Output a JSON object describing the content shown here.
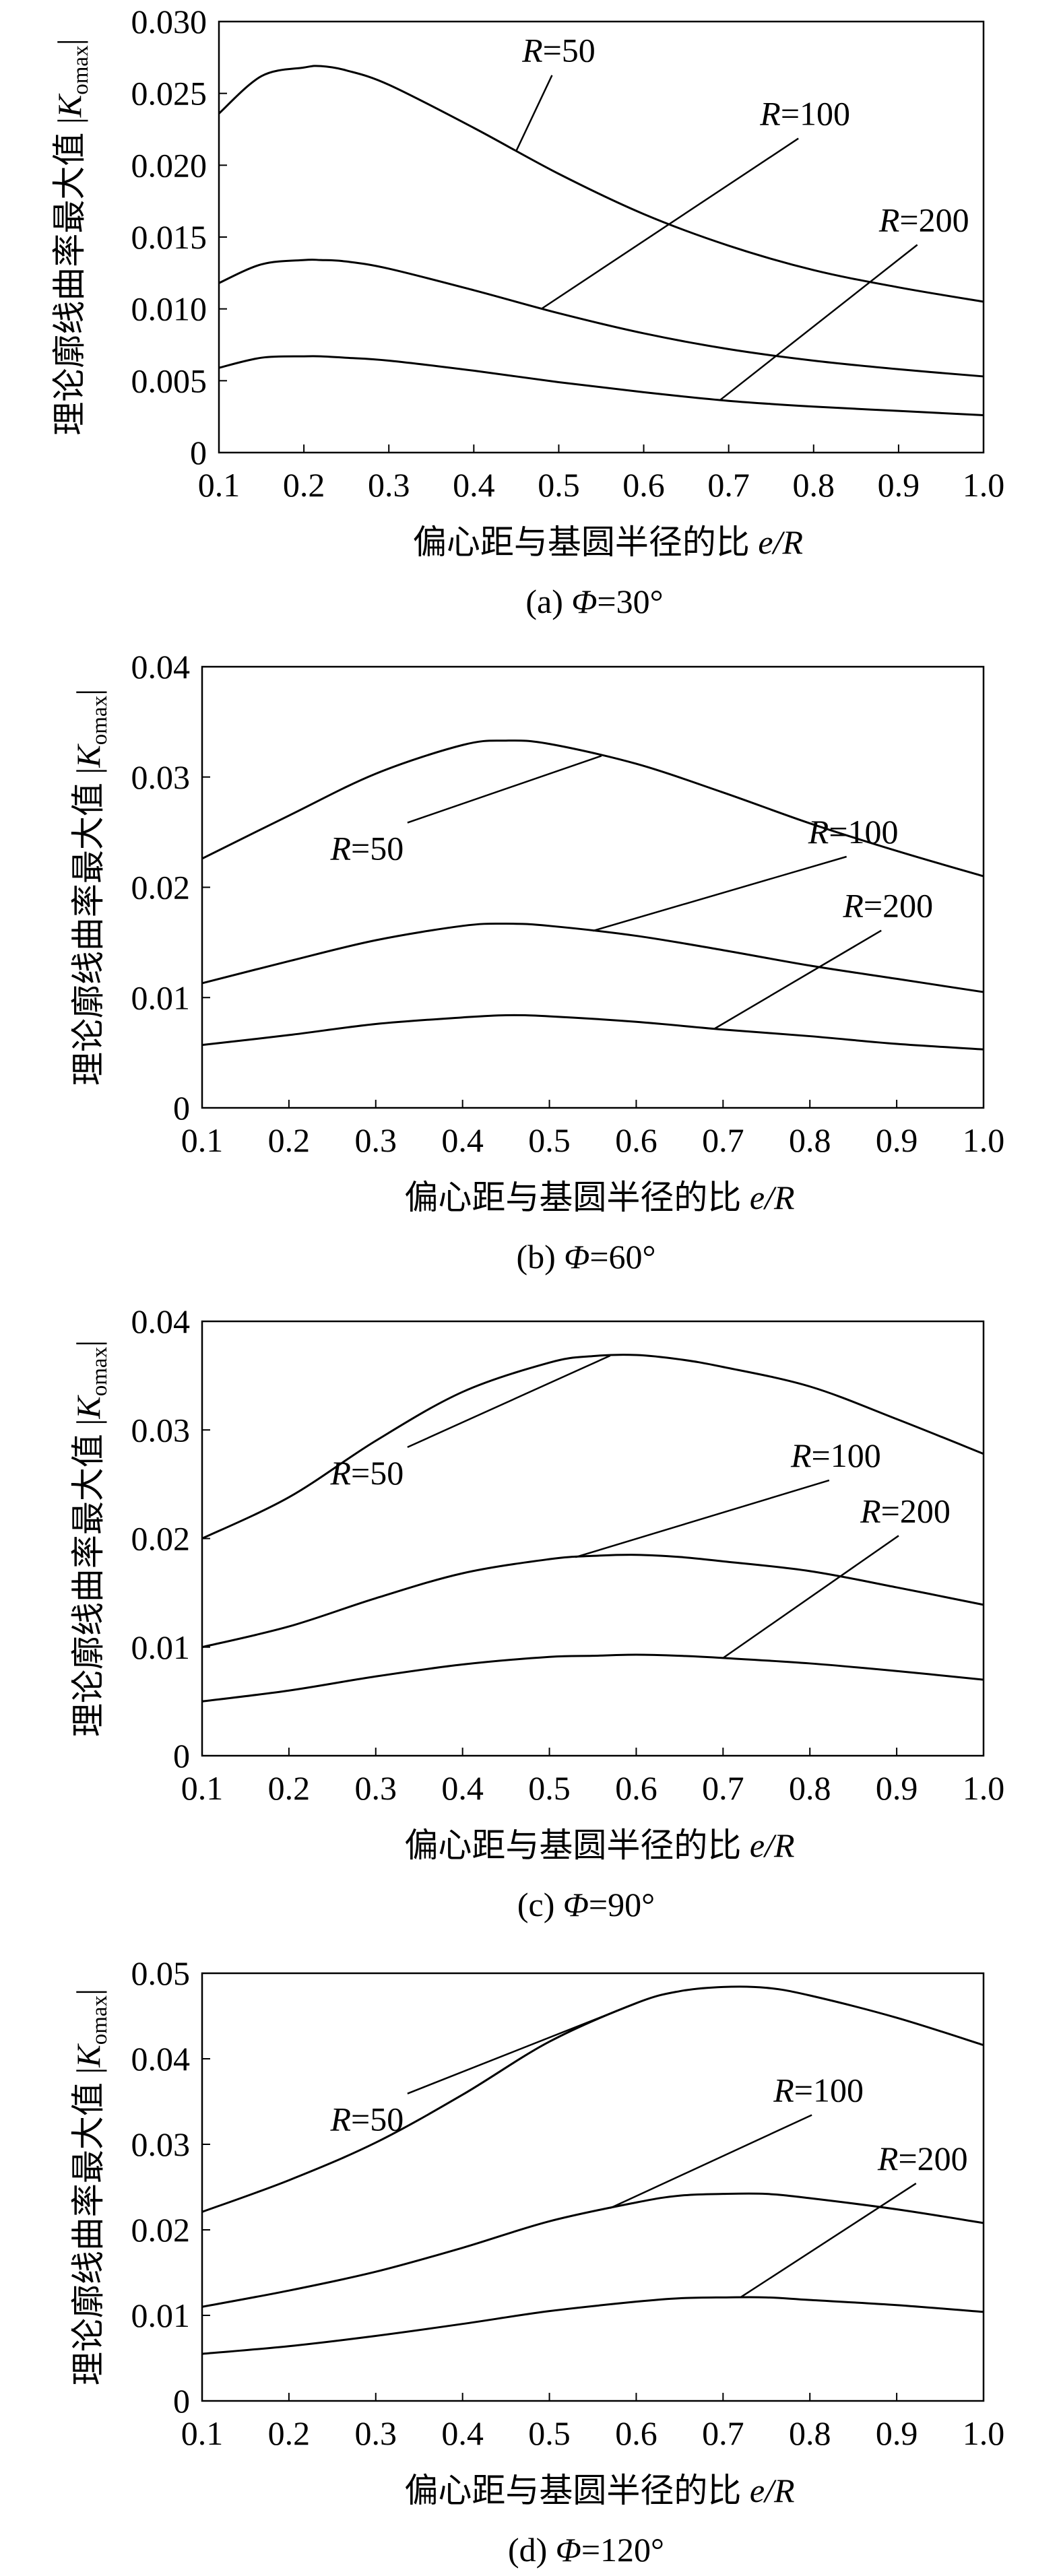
{
  "chart_data": [
    {
      "type": "line",
      "caption": "(a) Φ=30°",
      "caption_parts": {
        "prefix": "(a) ",
        "symbol": "Φ",
        "suffix": "=30°"
      },
      "xlabel_text": "偏心距与基圆半径的比 ",
      "xlabel_var": "e/R",
      "ylabel_text": "理论廓线曲率最大值 |",
      "ylabel_var": "K",
      "ylabel_sub": "omax",
      "ylabel_end": "|",
      "xlim": [
        0.1,
        1.0
      ],
      "ylim": [
        0,
        0.03
      ],
      "xticks": [
        0.1,
        0.2,
        0.3,
        0.4,
        0.5,
        0.6,
        0.7,
        0.8,
        0.9,
        1.0
      ],
      "xtick_labels": [
        "0.1",
        "0.2",
        "0.3",
        "0.4",
        "0.5",
        "0.6",
        "0.7",
        "0.8",
        "0.9",
        "1.0"
      ],
      "yticks": [
        0,
        0.005,
        0.01,
        0.015,
        0.02,
        0.025,
        0.03
      ],
      "ytick_labels": [
        "0",
        "0.005",
        "0.010",
        "0.015",
        "0.020",
        "0.025",
        "0.030"
      ],
      "x": [
        0.1,
        0.15,
        0.2,
        0.22,
        0.25,
        0.3,
        0.4,
        0.5,
        0.6,
        0.7,
        0.8,
        0.9,
        1.0
      ],
      "series": [
        {
          "label": "R=50",
          "label_var": "R",
          "label_val": "=50",
          "values": [
            0.0236,
            0.0262,
            0.0268,
            0.0269,
            0.0266,
            0.0256,
            0.0226,
            0.0194,
            0.0166,
            0.0144,
            0.0127,
            0.0115,
            0.0105
          ],
          "callout": {
            "x": 0.45,
            "lx": 0.5,
            "ly": 0.0272
          }
        },
        {
          "label": "R=100",
          "label_var": "R",
          "label_val": "=100",
          "values": [
            0.0118,
            0.0131,
            0.0134,
            0.0134,
            0.0133,
            0.0128,
            0.0113,
            0.0097,
            0.0083,
            0.0072,
            0.0064,
            0.0058,
            0.0053
          ],
          "callout": {
            "x": 0.48,
            "lx": 0.79,
            "ly": 0.0228
          }
        },
        {
          "label": "R=200",
          "label_var": "R",
          "label_val": "=200",
          "values": [
            0.0059,
            0.0066,
            0.0067,
            0.0067,
            0.0066,
            0.0064,
            0.0057,
            0.0049,
            0.0042,
            0.0036,
            0.0032,
            0.0029,
            0.0026
          ],
          "callout": {
            "x": 0.69,
            "lx": 0.93,
            "ly": 0.0154
          }
        }
      ]
    },
    {
      "type": "line",
      "caption": "(b) Φ=60°",
      "caption_parts": {
        "prefix": "(b) ",
        "symbol": "Φ",
        "suffix": "=60°"
      },
      "xlabel_text": "偏心距与基圆半径的比 ",
      "xlabel_var": "e/R",
      "ylabel_text": "理论廓线曲率最大值 |",
      "ylabel_var": "K",
      "ylabel_sub": "omax",
      "ylabel_end": "|",
      "xlim": [
        0.1,
        1.0
      ],
      "ylim": [
        0,
        0.04
      ],
      "xticks": [
        0.1,
        0.2,
        0.3,
        0.4,
        0.5,
        0.6,
        0.7,
        0.8,
        0.9,
        1.0
      ],
      "xtick_labels": [
        "0.1",
        "0.2",
        "0.3",
        "0.4",
        "0.5",
        "0.6",
        "0.7",
        "0.8",
        "0.9",
        "1.0"
      ],
      "yticks": [
        0,
        0.01,
        0.02,
        0.03,
        0.04
      ],
      "ytick_labels": [
        "0",
        "0.01",
        "0.02",
        "0.03",
        "0.04"
      ],
      "x": [
        0.1,
        0.2,
        0.3,
        0.4,
        0.45,
        0.5,
        0.6,
        0.7,
        0.8,
        0.9,
        1.0
      ],
      "series": [
        {
          "label": "R=50",
          "label_var": "R",
          "label_val": "=50",
          "values": [
            0.0226,
            0.0265,
            0.0303,
            0.0329,
            0.0333,
            0.033,
            0.0312,
            0.0286,
            0.0258,
            0.0233,
            0.021
          ],
          "callout": {
            "x": 0.56,
            "lx": 0.29,
            "ly": 0.0225
          }
        },
        {
          "label": "R=100",
          "label_var": "R",
          "label_val": "=100",
          "values": [
            0.0113,
            0.0133,
            0.0152,
            0.0165,
            0.0167,
            0.0165,
            0.0156,
            0.0143,
            0.0129,
            0.0117,
            0.0105
          ],
          "callout": {
            "x": 0.55,
            "lx": 0.85,
            "ly": 0.024
          }
        },
        {
          "label": "R=200",
          "label_var": "R",
          "label_val": "=200",
          "values": [
            0.0057,
            0.0066,
            0.0076,
            0.0082,
            0.0084,
            0.0083,
            0.0078,
            0.0071,
            0.0065,
            0.0058,
            0.0053
          ],
          "callout": {
            "x": 0.69,
            "lx": 0.89,
            "ly": 0.0173
          }
        }
      ]
    },
    {
      "type": "line",
      "caption": "(c) Φ=90°",
      "caption_parts": {
        "prefix": "(c) ",
        "symbol": "Φ",
        "suffix": "=90°"
      },
      "xlabel_text": "偏心距与基圆半径的比 ",
      "xlabel_var": "e/R",
      "ylabel_text": "理论廓线曲率最大值 |",
      "ylabel_var": "K",
      "ylabel_sub": "omax",
      "ylabel_end": "|",
      "xlim": [
        0.1,
        1.0
      ],
      "ylim": [
        0,
        0.04
      ],
      "xticks": [
        0.1,
        0.2,
        0.3,
        0.4,
        0.5,
        0.6,
        0.7,
        0.8,
        0.9,
        1.0
      ],
      "xtick_labels": [
        "0.1",
        "0.2",
        "0.3",
        "0.4",
        "0.5",
        "0.6",
        "0.7",
        "0.8",
        "0.9",
        "1.0"
      ],
      "yticks": [
        0,
        0.01,
        0.02,
        0.03,
        0.04
      ],
      "ytick_labels": [
        "0",
        "0.01",
        "0.02",
        "0.03",
        "0.04"
      ],
      "x": [
        0.1,
        0.2,
        0.3,
        0.4,
        0.5,
        0.55,
        0.6,
        0.65,
        0.7,
        0.8,
        0.9,
        1.0
      ],
      "series": [
        {
          "label": "R=50",
          "label_var": "R",
          "label_val": "=50",
          "values": [
            0.02,
            0.0238,
            0.029,
            0.0335,
            0.0362,
            0.0368,
            0.0369,
            0.0365,
            0.0358,
            0.034,
            0.031,
            0.0278
          ],
          "callout": {
            "x": 0.57,
            "lx": 0.29,
            "ly": 0.025
          }
        },
        {
          "label": "R=100",
          "label_var": "R",
          "label_val": "=100",
          "values": [
            0.01,
            0.0119,
            0.0145,
            0.0168,
            0.0181,
            0.0184,
            0.0185,
            0.0183,
            0.0179,
            0.017,
            0.0155,
            0.0139
          ],
          "callout": {
            "x": 0.53,
            "lx": 0.83,
            "ly": 0.0266
          }
        },
        {
          "label": "R=200",
          "label_var": "R",
          "label_val": "=200",
          "values": [
            0.005,
            0.006,
            0.0073,
            0.0084,
            0.0091,
            0.0092,
            0.0093,
            0.0092,
            0.009,
            0.0085,
            0.0078,
            0.007
          ],
          "callout": {
            "x": 0.7,
            "lx": 0.91,
            "ly": 0.0215
          }
        }
      ]
    },
    {
      "type": "line",
      "caption": "(d) Φ=120°",
      "caption_parts": {
        "prefix": "(d) ",
        "symbol": "Φ",
        "suffix": "=120°"
      },
      "xlabel_text": "偏心距与基圆半径的比 ",
      "xlabel_var": "e/R",
      "ylabel_text": "理论廓线曲率最大值 |",
      "ylabel_var": "K",
      "ylabel_sub": "omax",
      "ylabel_end": "|",
      "xlim": [
        0.1,
        1.0
      ],
      "ylim": [
        0,
        0.05
      ],
      "xticks": [
        0.1,
        0.2,
        0.3,
        0.4,
        0.5,
        0.6,
        0.7,
        0.8,
        0.9,
        1.0
      ],
      "xtick_labels": [
        "0.1",
        "0.2",
        "0.3",
        "0.4",
        "0.5",
        "0.6",
        "0.7",
        "0.8",
        "0.9",
        "1.0"
      ],
      "yticks": [
        0,
        0.01,
        0.02,
        0.03,
        0.04,
        0.05
      ],
      "ytick_labels": [
        "0",
        "0.01",
        "0.02",
        "0.03",
        "0.04",
        "0.05"
      ],
      "x": [
        0.1,
        0.2,
        0.3,
        0.4,
        0.5,
        0.6,
        0.65,
        0.7,
        0.75,
        0.8,
        0.9,
        1.0
      ],
      "series": [
        {
          "label": "R=50",
          "label_var": "R",
          "label_val": "=50",
          "values": [
            0.0221,
            0.0258,
            0.0302,
            0.0358,
            0.042,
            0.0465,
            0.0479,
            0.0484,
            0.0483,
            0.0474,
            0.0448,
            0.0416
          ],
          "callout": {
            "x": 0.6,
            "lx": 0.29,
            "ly": 0.0316
          }
        },
        {
          "label": "R=100",
          "label_var": "R",
          "label_val": "=100",
          "values": [
            0.011,
            0.0129,
            0.0151,
            0.0179,
            0.021,
            0.0232,
            0.024,
            0.0242,
            0.0242,
            0.0237,
            0.0224,
            0.0208
          ],
          "callout": {
            "x": 0.57,
            "lx": 0.81,
            "ly": 0.035
          }
        },
        {
          "label": "R=200",
          "label_var": "R",
          "label_val": "=200",
          "values": [
            0.0055,
            0.0064,
            0.0076,
            0.009,
            0.0105,
            0.0116,
            0.012,
            0.0121,
            0.0121,
            0.0118,
            0.0112,
            0.0104
          ],
          "callout": {
            "x": 0.72,
            "lx": 0.93,
            "ly": 0.027
          }
        }
      ]
    }
  ]
}
